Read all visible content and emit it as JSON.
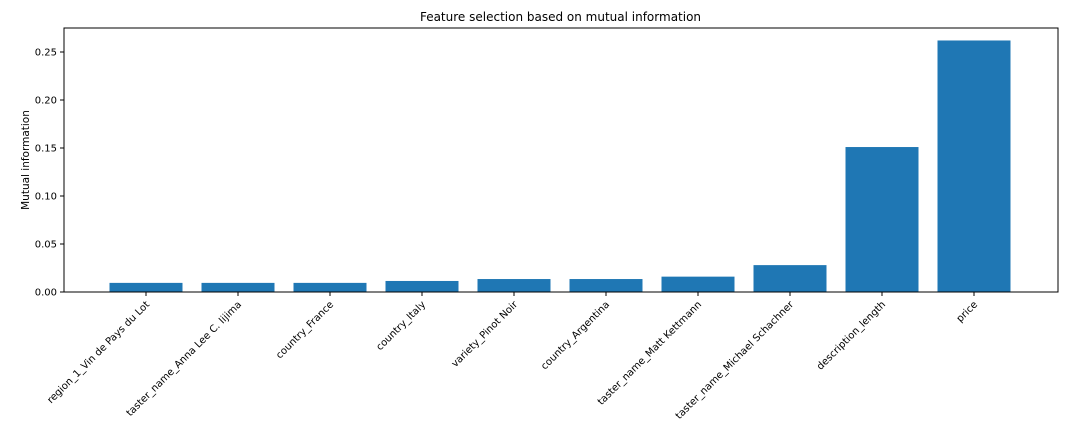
{
  "chart_data": {
    "type": "bar",
    "title": "Feature selection based on mutual information",
    "xlabel": "",
    "ylabel": "Mutual information",
    "categories": [
      "region_1_Vin de Pays du Lot",
      "taster_name_Anna Lee C. Iijima",
      "country_France",
      "country_Italy",
      "variety_Pinot Noir",
      "country_Argentina",
      "taster_name_Matt Kettmann",
      "taster_name_Michael Schachner",
      "description_length",
      "price"
    ],
    "values": [
      0.0095,
      0.0095,
      0.0095,
      0.0115,
      0.0135,
      0.0135,
      0.016,
      0.028,
      0.151,
      0.262
    ],
    "ylim": [
      0,
      0.275
    ],
    "yticks": [
      "0.00",
      "0.05",
      "0.10",
      "0.15",
      "0.20",
      "0.25"
    ],
    "bar_color": "#1f77b4",
    "grid": false,
    "legend": "none"
  }
}
